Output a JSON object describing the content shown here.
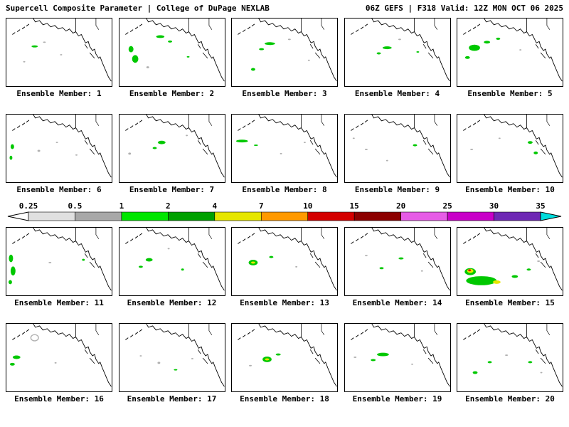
{
  "header": {
    "left": "Supercell Composite Parameter | College of DuPage NEXLAB",
    "right": "06Z GEFS | F318 Valid: 12Z MON OCT 06 2025"
  },
  "colorbar": {
    "ticks": [
      "0.25",
      "0.5",
      "1",
      "2",
      "4",
      "7",
      "10",
      "15",
      "20",
      "25",
      "30",
      "35"
    ],
    "segment_colors": [
      "#e0e0e0",
      "#a8a8a8",
      "#00e600",
      "#00a000",
      "#e6e600",
      "#ff9900",
      "#d40000",
      "#8c0000",
      "#e65ce6",
      "#c800c8",
      "#6e28b4"
    ],
    "arrow_left_color": "#ffffff",
    "arrow_right_color": "#00dcdc",
    "border_color": "#000000"
  },
  "map_colors": {
    "green": "#00c800",
    "yellow": "#e6e600",
    "red": "#dc1400",
    "gray": "#b0b0b0",
    "coast": "#000000"
  },
  "members": [
    {
      "n": 1,
      "label": "Ensemble Member: 1",
      "blobs": [
        [
          40,
          40,
          9,
          3,
          "#00c800"
        ],
        [
          54,
          34,
          4,
          2,
          "#b0b0b0"
        ],
        [
          78,
          52,
          3,
          2,
          "#b0b0b0"
        ],
        [
          25,
          62,
          3,
          2,
          "#b0b0b0"
        ]
      ]
    },
    {
      "n": 2,
      "label": "Ensemble Member: 2",
      "blobs": [
        [
          16,
          44,
          7,
          9,
          "#00c800"
        ],
        [
          22,
          58,
          9,
          11,
          "#00c800"
        ],
        [
          58,
          26,
          12,
          4,
          "#00c800"
        ],
        [
          72,
          33,
          6,
          3,
          "#00c800"
        ],
        [
          40,
          70,
          4,
          3,
          "#b0b0b0"
        ],
        [
          98,
          55,
          4,
          2,
          "#00c800"
        ]
      ]
    },
    {
      "n": 3,
      "label": "Ensemble Member: 3",
      "blobs": [
        [
          54,
          36,
          15,
          4,
          "#00c800"
        ],
        [
          42,
          44,
          7,
          3,
          "#00c800"
        ],
        [
          30,
          73,
          6,
          4,
          "#00c800"
        ],
        [
          82,
          30,
          4,
          2,
          "#b0b0b0"
        ],
        [
          110,
          60,
          3,
          2,
          "#b0b0b0"
        ]
      ]
    },
    {
      "n": 4,
      "label": "Ensemble Member: 4",
      "blobs": [
        [
          60,
          42,
          13,
          4,
          "#00c800"
        ],
        [
          48,
          50,
          6,
          3,
          "#00c800"
        ],
        [
          78,
          30,
          4,
          2,
          "#b0b0b0"
        ],
        [
          104,
          48,
          4,
          2,
          "#00c800"
        ]
      ]
    },
    {
      "n": 5,
      "label": "Ensemble Member: 5",
      "blobs": [
        [
          24,
          42,
          16,
          9,
          "#00c800"
        ],
        [
          42,
          34,
          9,
          4,
          "#00c800"
        ],
        [
          58,
          29,
          6,
          3,
          "#00c800"
        ],
        [
          14,
          56,
          7,
          4,
          "#00c800"
        ],
        [
          90,
          45,
          3,
          2,
          "#b0b0b0"
        ]
      ]
    },
    {
      "n": 6,
      "label": "Ensemble Member: 6",
      "blobs": [
        [
          8,
          46,
          5,
          7,
          "#00c800"
        ],
        [
          6,
          62,
          4,
          6,
          "#00c800"
        ],
        [
          46,
          52,
          4,
          3,
          "#b0b0b0"
        ],
        [
          72,
          40,
          3,
          2,
          "#b0b0b0"
        ],
        [
          100,
          58,
          3,
          2,
          "#b0b0b0"
        ]
      ]
    },
    {
      "n": 7,
      "label": "Ensemble Member: 7",
      "blobs": [
        [
          60,
          40,
          11,
          5,
          "#00c800"
        ],
        [
          50,
          48,
          6,
          3,
          "#00c800"
        ],
        [
          14,
          56,
          4,
          3,
          "#b0b0b0"
        ],
        [
          96,
          30,
          3,
          2,
          "#b0b0b0"
        ]
      ]
    },
    {
      "n": 8,
      "label": "Ensemble Member: 8",
      "blobs": [
        [
          14,
          38,
          17,
          4,
          "#00c800"
        ],
        [
          34,
          44,
          6,
          2,
          "#00c800"
        ],
        [
          70,
          56,
          3,
          2,
          "#b0b0b0"
        ],
        [
          104,
          40,
          3,
          2,
          "#b0b0b0"
        ]
      ]
    },
    {
      "n": 9,
      "label": "Ensemble Member: 9",
      "blobs": [
        [
          100,
          44,
          6,
          3,
          "#00c800"
        ],
        [
          30,
          50,
          4,
          2,
          "#b0b0b0"
        ],
        [
          60,
          66,
          3,
          2,
          "#b0b0b0"
        ],
        [
          12,
          34,
          3,
          2,
          "#b0b0b0"
        ]
      ]
    },
    {
      "n": 10,
      "label": "Ensemble Member: 10",
      "blobs": [
        [
          104,
          40,
          7,
          4,
          "#00c800"
        ],
        [
          112,
          55,
          6,
          4,
          "#00c800"
        ],
        [
          20,
          50,
          4,
          2,
          "#b0b0b0"
        ],
        [
          60,
          34,
          3,
          2,
          "#b0b0b0"
        ]
      ]
    },
    {
      "n": 11,
      "label": "Ensemble Member: 11",
      "blobs": [
        [
          6,
          44,
          6,
          11,
          "#00c800"
        ],
        [
          9,
          62,
          7,
          13,
          "#00c800"
        ],
        [
          5,
          78,
          5,
          6,
          "#00c800"
        ],
        [
          62,
          50,
          4,
          2,
          "#b0b0b0"
        ],
        [
          110,
          46,
          4,
          3,
          "#00c800"
        ]
      ]
    },
    {
      "n": 12,
      "label": "Ensemble Member: 12",
      "blobs": [
        [
          42,
          46,
          10,
          5,
          "#00c800"
        ],
        [
          30,
          56,
          6,
          3,
          "#00c800"
        ],
        [
          90,
          60,
          4,
          3,
          "#00c800"
        ],
        [
          70,
          30,
          3,
          2,
          "#b0b0b0"
        ]
      ]
    },
    {
      "n": 13,
      "label": "Ensemble Member: 13",
      "blobs": [
        [
          30,
          50,
          13,
          8,
          "#00c800"
        ],
        [
          30,
          50,
          6,
          3,
          "#e6e600"
        ],
        [
          56,
          42,
          6,
          3,
          "#00c800"
        ],
        [
          92,
          56,
          3,
          2,
          "#b0b0b0"
        ]
      ]
    },
    {
      "n": 14,
      "label": "Ensemble Member: 14",
      "blobs": [
        [
          80,
          44,
          7,
          3,
          "#00c800"
        ],
        [
          52,
          58,
          6,
          3,
          "#00c800"
        ],
        [
          30,
          40,
          4,
          2,
          "#b0b0b0"
        ],
        [
          110,
          62,
          3,
          2,
          "#b0b0b0"
        ]
      ]
    },
    {
      "n": 15,
      "label": "Ensemble Member: 15",
      "blobs": [
        [
          34,
          76,
          44,
          13,
          "#00c800"
        ],
        [
          18,
          63,
          16,
          10,
          "#00c800"
        ],
        [
          18,
          62,
          9,
          6,
          "#e6e600"
        ],
        [
          17,
          61,
          4,
          3,
          "#dc1400"
        ],
        [
          56,
          78,
          11,
          5,
          "#e6e600"
        ],
        [
          82,
          70,
          9,
          4,
          "#00c800"
        ],
        [
          102,
          60,
          6,
          3,
          "#00c800"
        ],
        [
          116,
          48,
          4,
          2,
          "#b0b0b0"
        ]
      ]
    },
    {
      "n": 16,
      "label": "Ensemble Member: 16",
      "blobs": [
        [
          14,
          48,
          11,
          5,
          "#00c800"
        ],
        [
          8,
          58,
          7,
          4,
          "#00c800"
        ],
        [
          40,
          20,
          11,
          9,
          "#b0b0b0",
          1
        ],
        [
          70,
          56,
          3,
          2,
          "#b0b0b0"
        ]
      ]
    },
    {
      "n": 17,
      "label": "Ensemble Member: 17",
      "blobs": [
        [
          56,
          56,
          4,
          3,
          "#b0b0b0"
        ],
        [
          30,
          46,
          3,
          2,
          "#b0b0b0"
        ],
        [
          80,
          66,
          5,
          2,
          "#00c800"
        ],
        [
          104,
          50,
          3,
          2,
          "#b0b0b0"
        ]
      ]
    },
    {
      "n": 18,
      "label": "Ensemble Member: 18",
      "blobs": [
        [
          50,
          51,
          13,
          8,
          "#00c800"
        ],
        [
          50,
          51,
          6,
          3,
          "#e6e600"
        ],
        [
          66,
          44,
          7,
          3,
          "#00c800"
        ],
        [
          26,
          60,
          4,
          2,
          "#b0b0b0"
        ]
      ]
    },
    {
      "n": 19,
      "label": "Ensemble Member: 19",
      "blobs": [
        [
          54,
          44,
          17,
          5,
          "#00c800"
        ],
        [
          40,
          52,
          7,
          3,
          "#00c800"
        ],
        [
          14,
          48,
          4,
          2,
          "#b0b0b0"
        ],
        [
          96,
          58,
          3,
          2,
          "#b0b0b0"
        ]
      ]
    },
    {
      "n": 20,
      "label": "Ensemble Member: 20",
      "blobs": [
        [
          25,
          70,
          7,
          4,
          "#00c800"
        ],
        [
          46,
          55,
          6,
          3,
          "#00c800"
        ],
        [
          70,
          45,
          4,
          2,
          "#b0b0b0"
        ],
        [
          104,
          55,
          6,
          3,
          "#00c800"
        ],
        [
          120,
          70,
          3,
          2,
          "#b0b0b0"
        ]
      ]
    }
  ]
}
